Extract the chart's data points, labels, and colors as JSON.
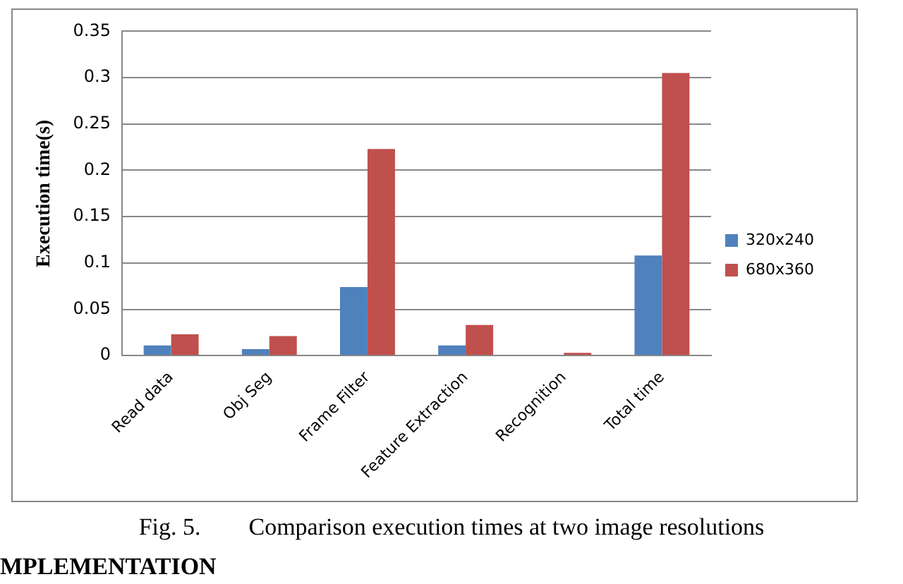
{
  "chart_data": {
    "type": "bar",
    "ylabel": "Execution time(s)",
    "categories": [
      "Read data",
      "Obj Seg",
      "Frame Filter",
      "Feature Extraction",
      "Recognition",
      "Total time"
    ],
    "series": [
      {
        "name": "320x240",
        "color": "#4f81bd",
        "values": [
          0.011,
          0.007,
          0.074,
          0.011,
          0,
          0.108
        ]
      },
      {
        "name": "680x360",
        "color": "#c0504d",
        "values": [
          0.023,
          0.021,
          0.223,
          0.033,
          0.003,
          0.305
        ]
      }
    ],
    "ylim": [
      0,
      0.35
    ],
    "yticks": [
      0,
      0.05,
      0.1,
      0.15,
      0.2,
      0.25,
      0.3,
      0.35
    ],
    "grid": "y",
    "legend": "right",
    "annotations": [
      "Fig. 5.        Comparison execution times at two image resolutions",
      "MPLEMENTATION"
    ]
  }
}
